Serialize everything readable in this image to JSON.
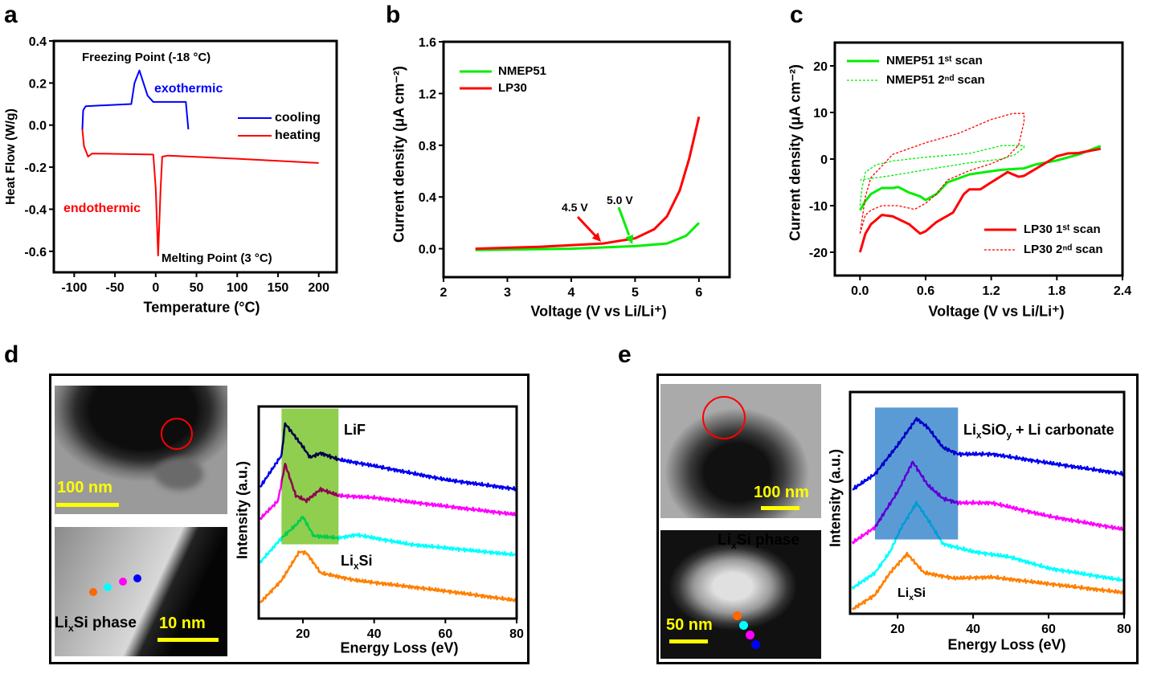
{
  "panel_letters": [
    "a",
    "b",
    "c",
    "d",
    "e"
  ],
  "colors": {
    "cooling": "#0000ff",
    "heating": "#ff0000",
    "nmep": "#00ee00",
    "lp30": "#ff0000",
    "lif_box": "#8fce4e",
    "carbonate_box": "#5b9bd5",
    "spec_blue": "#0000ee",
    "spec_magenta": "#ff00ff",
    "spec_cyan": "#00ffff",
    "spec_orange": "#ff8000",
    "scale_bar": "#ffff00",
    "circle": "#ff0000"
  },
  "chart_data": [
    {
      "type": "line",
      "panel": "a",
      "xlabel": "Temperature (°C)",
      "ylabel": "Heat Flow (W/g)",
      "xlim": [
        -125,
        222
      ],
      "ylim": [
        -0.7,
        0.4
      ],
      "xticks": [
        -100,
        -50,
        0,
        50,
        100,
        150,
        200
      ],
      "xtick_labels": [
        "-100",
        "-50",
        "0",
        "50",
        "100",
        "150",
        "200"
      ],
      "yticks": [
        -0.6,
        -0.4,
        -0.2,
        0.0,
        0.2,
        0.4
      ],
      "ytick_labels": [
        "-0.6",
        "-0.4",
        "-0.2",
        "0.0",
        "0.2",
        "0.4"
      ],
      "legend": "right",
      "series": [
        {
          "name": "cooling",
          "color": "#0000ff",
          "x": [
            -90,
            -89,
            -86,
            -30,
            -26,
            -20,
            -15,
            -10,
            -3,
            37,
            40
          ],
          "y": [
            -0.02,
            0.07,
            0.09,
            0.1,
            0.2,
            0.26,
            0.2,
            0.14,
            0.11,
            0.11,
            -0.02
          ]
        },
        {
          "name": "heating",
          "color": "#ff0000",
          "x": [
            -90,
            -88,
            -83,
            -78,
            -3,
            0,
            3,
            6,
            8,
            15,
            100,
            200
          ],
          "y": [
            -0.02,
            -0.1,
            -0.15,
            -0.135,
            -0.14,
            -0.3,
            -0.62,
            -0.3,
            -0.15,
            -0.145,
            -0.16,
            -0.18
          ]
        }
      ],
      "annotations": [
        "Freezing Point (-18 °C)",
        "exothermic",
        "endothermic",
        "Melting Point (3 °C)"
      ]
    },
    {
      "type": "line",
      "panel": "b",
      "xlabel": "Voltage (V vs Li/Li⁺)",
      "ylabel": "Current density (μA cm⁻²)",
      "xlim": [
        2,
        6.48
      ],
      "ylim": [
        -0.22,
        1.6
      ],
      "xticks": [
        2,
        3,
        4,
        5,
        6
      ],
      "xtick_labels": [
        "2",
        "3",
        "4",
        "5",
        "6"
      ],
      "yticks": [
        0,
        0.4,
        0.8,
        1.2,
        1.6
      ],
      "ytick_labels": [
        "0.0",
        "0.4",
        "0.8",
        "1.2",
        "1.6"
      ],
      "legend": "top-left",
      "series": [
        {
          "name": "NMEP51",
          "color": "#00ee00",
          "x": [
            2.5,
            4,
            5,
            5.5,
            5.8,
            6
          ],
          "y": [
            -0.01,
            0.0,
            0.02,
            0.04,
            0.1,
            0.2
          ]
        },
        {
          "name": "LP30",
          "color": "#ff0000",
          "x": [
            2.5,
            3.5,
            4.5,
            5,
            5.3,
            5.5,
            5.7,
            5.85,
            6
          ],
          "y": [
            0.0,
            0.015,
            0.04,
            0.08,
            0.15,
            0.25,
            0.45,
            0.7,
            1.02
          ]
        }
      ],
      "annotations": [
        "4.5 V",
        "5.0 V"
      ]
    },
    {
      "type": "line",
      "panel": "c",
      "xlabel": "Voltage (V vs Li/Li⁺)",
      "ylabel": "Current density (μA cm⁻²)",
      "xlim": [
        -0.23,
        2.4
      ],
      "ylim": [
        -25,
        25
      ],
      "xticks": [
        0,
        0.6,
        1.2,
        1.8,
        2.4
      ],
      "xtick_labels": [
        "0.0",
        "0.6",
        "1.2",
        "1.8",
        "2.4"
      ],
      "yticks": [
        -20,
        -10,
        0,
        10,
        20
      ],
      "ytick_labels": [
        "-20",
        "-10",
        "0",
        "10",
        "20"
      ],
      "legend": "top-left / bottom-right",
      "series": [
        {
          "name": "NMEP51 1ˢᵗ scan",
          "color": "#00ee00",
          "style": "solid",
          "x": [
            0,
            0.05,
            0.1,
            0.2,
            0.3,
            0.35,
            0.45,
            0.55,
            0.6,
            0.7,
            0.8,
            1.0,
            1.2,
            1.3,
            1.5,
            1.6,
            1.8,
            2.0,
            2.2
          ],
          "y": [
            -11,
            -9,
            -7.5,
            -6.2,
            -6.2,
            -6,
            -7.2,
            -8,
            -8.8,
            -7.5,
            -5,
            -3.3,
            -2.6,
            -2.3,
            -2,
            -1.2,
            -0.3,
            1.0,
            2.8
          ]
        },
        {
          "name": "NMEP51 2ⁿᵈ scan",
          "color": "#00ee00",
          "style": "dashed",
          "x": [
            0,
            0.02,
            0.05,
            0.15,
            0.3,
            0.6,
            1.0,
            1.3,
            1.5,
            1.5,
            1.42,
            1.3,
            1.0,
            0.6,
            0.3,
            0.0
          ],
          "y": [
            -10,
            -6,
            -2.8,
            -1.2,
            -0.4,
            0.4,
            1.2,
            2.9,
            2.9,
            2.5,
            1,
            0,
            -0.8,
            -2.3,
            -3.5,
            -4.5
          ]
        },
        {
          "name": "LP30 1ˢᵗ scan",
          "color": "#ff0000",
          "style": "solid",
          "x": [
            0,
            0.05,
            0.1,
            0.2,
            0.3,
            0.45,
            0.55,
            0.6,
            0.7,
            0.85,
            0.95,
            1.0,
            1.1,
            1.2,
            1.35,
            1.45,
            1.5,
            1.65,
            1.8,
            1.9,
            2.0,
            2.2
          ],
          "y": [
            -20,
            -16,
            -14,
            -12,
            -12.3,
            -14,
            -16,
            -15.5,
            -13.5,
            -11.5,
            -7.5,
            -6.5,
            -6.5,
            -5,
            -2.8,
            -3.8,
            -3.6,
            -1.5,
            0.6,
            1.2,
            1.3,
            2.2
          ]
        },
        {
          "name": "LP30 2ⁿᵈ scan",
          "color": "#ff0000",
          "style": "dashed",
          "x": [
            0,
            0.05,
            0.1,
            0.2,
            0.35,
            0.5,
            0.6,
            0.7,
            0.8,
            1.0,
            1.2,
            1.35,
            1.45,
            1.5,
            1.5,
            1.4,
            1.2,
            1.0,
            0.9,
            0.6,
            0.3,
            0.1,
            0.05,
            0
          ],
          "y": [
            -16,
            -12,
            -11,
            -10,
            -10,
            -10.8,
            -9.5,
            -7.5,
            -4.5,
            -2.5,
            -1.0,
            0.5,
            3,
            8,
            9.8,
            9.8,
            8.5,
            6.5,
            5.5,
            3.5,
            1,
            -4,
            -8,
            -16
          ]
        }
      ]
    },
    {
      "type": "line",
      "panel": "d",
      "xlabel": "Energy Loss (eV)",
      "ylabel": "Intensity (a.u.)",
      "xlim": [
        7.6,
        80
      ],
      "ylim": [
        0,
        10
      ],
      "xticks": [
        20,
        40,
        60,
        80
      ],
      "xtick_labels": [
        "20",
        "40",
        "60",
        "80"
      ],
      "highlight": {
        "x": [
          14,
          30
        ],
        "y": [
          3.5,
          9.9
        ],
        "color": "#8fce4e"
      },
      "series": [
        {
          "color": "#0000ee",
          "x": [
            8,
            14,
            15,
            20,
            22,
            25,
            30,
            40,
            60,
            80
          ],
          "y": [
            6.2,
            7.7,
            9.2,
            8.1,
            7.6,
            7.8,
            7.5,
            7.2,
            6.55,
            6.1
          ]
        },
        {
          "color": "#ff00ff",
          "x": [
            8,
            13,
            15,
            18,
            21,
            25,
            30,
            40,
            60,
            80
          ],
          "y": [
            4.7,
            5.55,
            7.3,
            5.8,
            5.55,
            6.1,
            5.8,
            5.7,
            5.3,
            4.9
          ]
        },
        {
          "color": "#00ffff",
          "x": [
            8,
            14,
            18,
            20,
            23,
            30,
            35,
            50,
            80
          ],
          "y": [
            2.65,
            3.8,
            4.4,
            4.8,
            3.9,
            3.8,
            3.95,
            3.5,
            3.0
          ]
        },
        {
          "color": "#ff8000",
          "x": [
            8,
            14,
            19,
            21,
            25,
            35,
            50,
            60,
            80
          ],
          "y": [
            0.75,
            1.8,
            3.15,
            3.1,
            2.15,
            1.8,
            1.5,
            1.3,
            0.85
          ]
        }
      ],
      "annotations": {
        "lif": "LiF",
        "lixsi": {
          "a": "Li",
          "sub": "x",
          "b": "Si"
        }
      }
    },
    {
      "type": "line",
      "panel": "e",
      "xlabel": "Energy Loss (eV)",
      "ylabel": "Intensity (a.u.)",
      "xlim": [
        7.4,
        80
      ],
      "ylim": [
        0,
        10
      ],
      "xticks": [
        20,
        40,
        60,
        80
      ],
      "xtick_labels": [
        "20",
        "40",
        "60",
        "80"
      ],
      "highlight": {
        "x": [
          14,
          36
        ],
        "y": [
          3.35,
          9.3
        ],
        "color": "#5b9bd5"
      },
      "series": [
        {
          "color": "#0000ee",
          "x": [
            8,
            14,
            20,
            25,
            28,
            32,
            36,
            45,
            60,
            80
          ],
          "y": [
            5.6,
            6.3,
            7.6,
            8.8,
            8.4,
            7.5,
            7.2,
            7.2,
            6.8,
            6.3
          ]
        },
        {
          "color": "#ff00ff",
          "x": [
            8,
            14,
            20,
            24,
            28,
            32,
            36,
            45,
            60,
            80
          ],
          "y": [
            3.2,
            3.9,
            5.5,
            6.85,
            5.8,
            5.2,
            5.0,
            5.0,
            4.4,
            3.8
          ]
        },
        {
          "color": "#00ffff",
          "x": [
            8,
            14,
            18,
            21,
            25,
            28,
            32,
            40,
            50,
            60,
            80
          ],
          "y": [
            1.15,
            1.85,
            2.8,
            3.9,
            5.0,
            4.25,
            3.15,
            2.8,
            2.55,
            2.05,
            1.5
          ]
        },
        {
          "color": "#ff8000",
          "x": [
            8,
            14,
            18,
            22.5,
            27,
            35,
            45,
            60,
            80
          ],
          "y": [
            0.2,
            0.85,
            1.85,
            2.7,
            1.85,
            1.6,
            1.65,
            1.35,
            0.95
          ]
        }
      ],
      "annotations": {
        "carbonate": {
          "a": "Li",
          "sub1": "x",
          "b": "SiO",
          "sub2": "y",
          "c": " + Li carbonate"
        },
        "lixsi": {
          "a": "Li",
          "sub": "x",
          "b": "Si"
        }
      }
    }
  ],
  "tem_d": {
    "scale_top": "100 nm",
    "scale_bottom": "10 nm",
    "phase": {
      "a": "Li",
      "sub": "x",
      "b": "Si phase"
    }
  },
  "tem_e": {
    "scale_top": "100 nm",
    "scale_bottom": "50 nm",
    "phase": {
      "a": "Li",
      "sub": "x",
      "b": "Si phase"
    }
  }
}
